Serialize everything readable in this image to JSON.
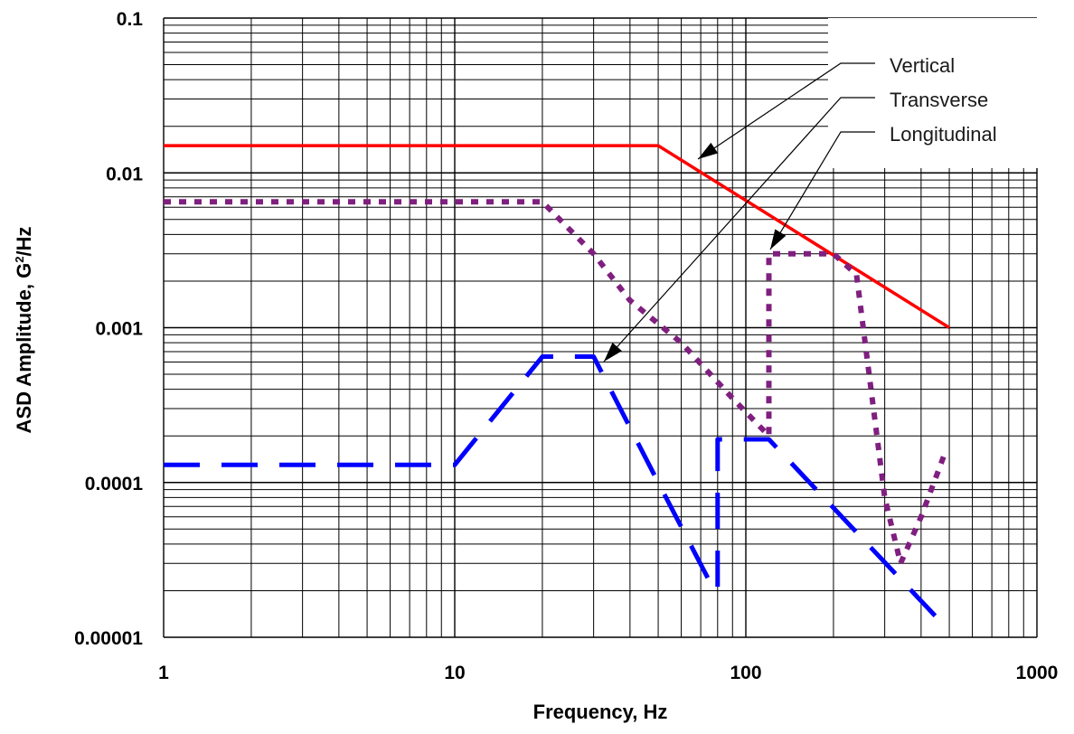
{
  "chart_data": {
    "type": "line",
    "title": "",
    "xlabel": "Frequency, Hz",
    "ylabel_main": "ASD Amplitude, G",
    "ylabel_sup": "2",
    "ylabel_tail": "/Hz",
    "xscale": "log",
    "yscale": "log",
    "xlim": [
      1,
      1000
    ],
    "ylim": [
      1e-05,
      0.1
    ],
    "grid": true,
    "x_tick_labels": [
      "1",
      "10",
      "100",
      "1000"
    ],
    "y_tick_labels": [
      "0.00001",
      "0.0001",
      "0.001",
      "0.01",
      "0.1"
    ],
    "legend_placement": "top-right",
    "series": [
      {
        "name": "Vertical",
        "color": "#ff0000",
        "style": "solid",
        "x": [
          1,
          50,
          500
        ],
        "y": [
          0.015,
          0.015,
          0.001
        ]
      },
      {
        "name": "Transverse",
        "color": "#0000ff",
        "style": "dashed",
        "x": [
          1,
          10,
          20,
          30,
          50,
          78,
          80,
          80,
          120,
          500
        ],
        "y": [
          0.00013,
          0.00013,
          0.00065,
          0.00065,
          0.0001,
          2e-05,
          2e-05,
          0.00019,
          0.00019,
          1.1e-05
        ]
      },
      {
        "name": "Longitudinal",
        "color": "#7f1f7f",
        "style": "dotted",
        "x": [
          1,
          20,
          30,
          40,
          60,
          90,
          120,
          120,
          200,
          240,
          300,
          340,
          400,
          480
        ],
        "y": [
          0.0065,
          0.0065,
          0.003,
          0.0015,
          0.0008,
          0.00035,
          0.0002,
          0.003,
          0.003,
          0.0022,
          8e-05,
          3e-05,
          6e-05,
          0.00015
        ]
      }
    ]
  }
}
